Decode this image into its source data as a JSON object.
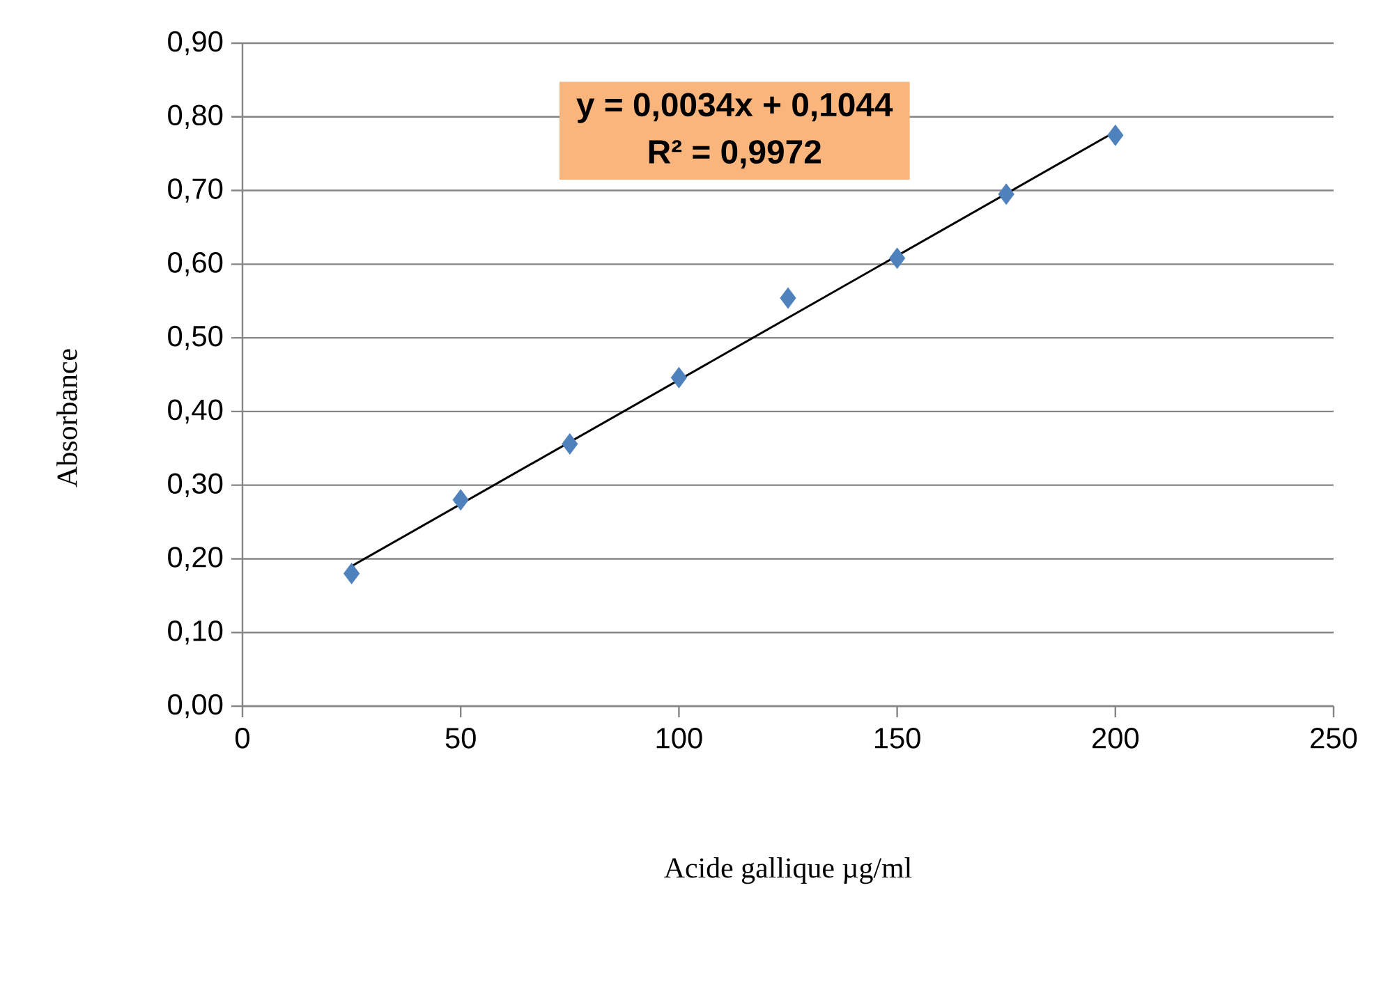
{
  "chart_data": {
    "type": "scatter",
    "xlabel": "Acide gallique µg/ml",
    "ylabel": "Absorbance",
    "series": [
      {
        "color": "#4f81bd",
        "marker": "diamond",
        "x": [
          25,
          50,
          75,
          100,
          125,
          150,
          175,
          200
        ],
        "values": [
          0.18,
          0.28,
          0.356,
          0.446,
          0.554,
          0.608,
          0.695,
          0.775
        ]
      },
      {
        "type": "line",
        "color": "#000000",
        "marker": "none",
        "x": [
          25,
          200
        ],
        "values": [
          0.19,
          0.78
        ]
      }
    ],
    "annotations": [
      "y = 0,0034x + 0,1044",
      "R² = 0,9972"
    ],
    "xlim": [
      0,
      250
    ],
    "xticks": [
      0,
      50,
      100,
      150,
      200,
      250
    ],
    "ylim": [
      0,
      0.9
    ],
    "yticks": [
      {
        "value": 0,
        "label": "0,00"
      },
      {
        "value": 0.1,
        "label": "0,10"
      },
      {
        "value": 0.2,
        "label": "0,20"
      },
      {
        "value": 0.3,
        "label": "0,30"
      },
      {
        "value": 0.4,
        "label": "0,40"
      },
      {
        "value": 0.5,
        "label": "0,50"
      },
      {
        "value": 0.6,
        "label": "0,60"
      },
      {
        "value": 0.7,
        "label": "0,70"
      },
      {
        "value": 0.8,
        "label": "0,80"
      },
      {
        "value": 0.9,
        "label": "0,90"
      }
    ],
    "grid": "y"
  }
}
